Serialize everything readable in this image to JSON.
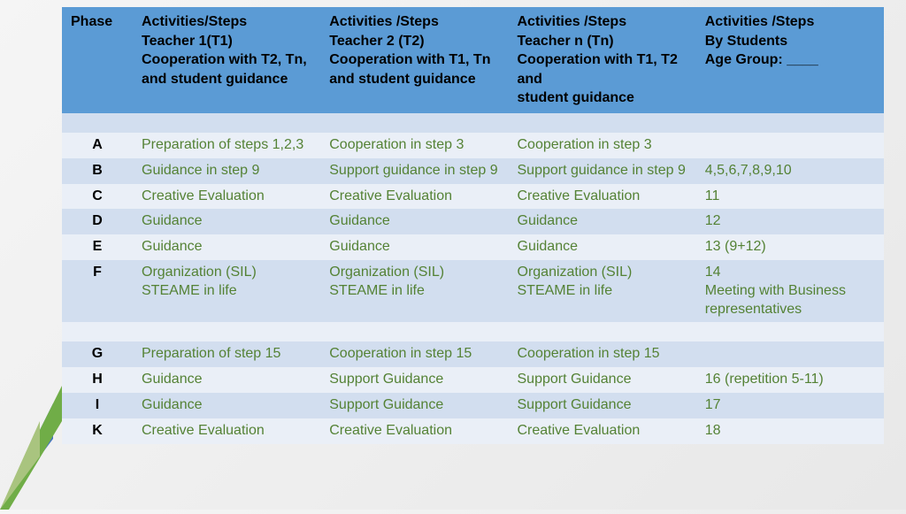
{
  "colors": {
    "header_bg": "#5b9bd5",
    "row_odd": "#d2deef",
    "row_even": "#eaeff7",
    "cell_text": "#548235",
    "phase_text": "#000000",
    "decor_green": "#70ad47",
    "decor_blue": "#4472c4"
  },
  "table": {
    "headers": [
      "Phase",
      "Activities/Steps\nTeacher 1(T1)\nCooperation with T2, Tn, and student guidance",
      "Activities /Steps\nTeacher 2 (T2)\nCooperation with T1, Tn  and student guidance",
      "Activities /Steps\nTeacher n (Tn)\nCooperation with T1, T2 and\nstudent guidance",
      "Activities /Steps\nBy Students\nAge Group: ____"
    ],
    "rows": [
      {
        "phase": "",
        "c1": "",
        "c2": "",
        "c3": "",
        "c4": "",
        "spacer": true
      },
      {
        "phase": "A",
        "c1": "Preparation of steps 1,2,3",
        "c2": "Cooperation in step 3",
        "c3": "Cooperation in step 3",
        "c4": ""
      },
      {
        "phase": "B",
        "c1": "Guidance in step 9",
        "c2": "Support guidance in step 9",
        "c3": "Support guidance in step 9",
        "c4": "4,5,6,7,8,9,10"
      },
      {
        "phase": "C",
        "c1": "Creative Evaluation",
        "c2": "Creative Evaluation",
        "c3": "Creative Evaluation",
        "c4": "11"
      },
      {
        "phase": "D",
        "c1": "Guidance",
        "c2": "Guidance",
        "c3": "Guidance",
        "c4": "12"
      },
      {
        "phase": "E",
        "c1": "Guidance",
        "c2": "Guidance",
        "c3": "Guidance",
        "c4": "13 (9+12)"
      },
      {
        "phase": "F",
        "c1": "Organization (SIL) STEAME in life",
        "c2": "Organization (SIL) STEAME in life",
        "c3": "Organization (SIL) STEAME in life",
        "c4": "14\nMeeting with Business representatives"
      },
      {
        "phase": "",
        "c1": "",
        "c2": "",
        "c3": "",
        "c4": "",
        "spacer": true
      },
      {
        "phase": "G",
        "c1": "Preparation of step 15",
        "c2": "Cooperation in step 15",
        "c3": "Cooperation in step 15",
        "c4": ""
      },
      {
        "phase": "H",
        "c1": "Guidance",
        "c2": "Support Guidance",
        "c3": "Support Guidance",
        "c4": "16 (repetition 5-11)"
      },
      {
        "phase": "I",
        "c1": "Guidance",
        "c2": "Support Guidance",
        "c3": "Support Guidance",
        "c4": "17"
      },
      {
        "phase": "K",
        "c1": "Creative Evaluation",
        "c2": "Creative Evaluation",
        "c3": "Creative Evaluation",
        "c4": "18"
      }
    ]
  }
}
